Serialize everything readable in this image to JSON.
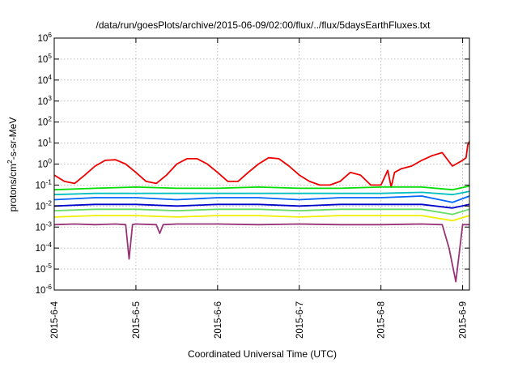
{
  "chart_data": {
    "type": "line",
    "title": "/data/run/goesPlots/archive/2015-06-09/02:00/flux/../flux/5daysEarthFluxes.txt",
    "xlabel": "Coordinated Universal Time (UTC)",
    "ylabel": {
      "prefix": "protons/cm",
      "superscript": "2",
      "suffix": "-s-sr-MeV"
    },
    "yscale": "log",
    "ylim": [
      1e-06,
      1000000.0
    ],
    "xlim": [
      "2015-06-04 00:00",
      "2015-06-09 02:00"
    ],
    "grid": true,
    "x_ticks": [
      "2015-6-4",
      "2015-6-5",
      "2015-6-6",
      "2015-6-7",
      "2015-6-8",
      "2015-6-9"
    ],
    "y_ticks": [
      {
        "value": 1e-06,
        "base": "10",
        "exp": "-6"
      },
      {
        "value": 1e-05,
        "base": "10",
        "exp": "-5"
      },
      {
        "value": 0.0001,
        "base": "10",
        "exp": "-4"
      },
      {
        "value": 0.001,
        "base": "10",
        "exp": "-3"
      },
      {
        "value": 0.01,
        "base": "10",
        "exp": "-2"
      },
      {
        "value": 0.1,
        "base": "10",
        "exp": "-1"
      },
      {
        "value": 1.0,
        "base": "10",
        "exp": "0"
      },
      {
        "value": 10.0,
        "base": "10",
        "exp": "1"
      },
      {
        "value": 100.0,
        "base": "10",
        "exp": "2"
      },
      {
        "value": 1000.0,
        "base": "10",
        "exp": "3"
      },
      {
        "value": 10000.0,
        "base": "10",
        "exp": "4"
      },
      {
        "value": 100000.0,
        "base": "10",
        "exp": "5"
      },
      {
        "value": 1000000.0,
        "base": "10",
        "exp": "6"
      }
    ],
    "series": [
      {
        "color": "#ee0000",
        "x": [
          "2015-06-04 00:00",
          "2015-06-04 03:00",
          "2015-06-04 06:00",
          "2015-06-04 09:00",
          "2015-06-04 12:00",
          "2015-06-04 15:00",
          "2015-06-04 18:00",
          "2015-06-04 21:00",
          "2015-06-05 00:00",
          "2015-06-05 03:00",
          "2015-06-05 06:00",
          "2015-06-05 09:00",
          "2015-06-05 12:00",
          "2015-06-05 15:00",
          "2015-06-05 18:00",
          "2015-06-05 21:00",
          "2015-06-06 00:00",
          "2015-06-06 03:00",
          "2015-06-06 06:00",
          "2015-06-06 09:00",
          "2015-06-06 12:00",
          "2015-06-06 15:00",
          "2015-06-06 18:00",
          "2015-06-06 21:00",
          "2015-06-07 00:00",
          "2015-06-07 03:00",
          "2015-06-07 06:00",
          "2015-06-07 09:00",
          "2015-06-07 12:00",
          "2015-06-07 15:00",
          "2015-06-07 18:00",
          "2015-06-07 21:00",
          "2015-06-08 00:00",
          "2015-06-08 02:00",
          "2015-06-08 03:00",
          "2015-06-08 04:00",
          "2015-06-08 06:00",
          "2015-06-08 09:00",
          "2015-06-08 12:00",
          "2015-06-08 15:00",
          "2015-06-08 18:00",
          "2015-06-08 21:00",
          "2015-06-09 00:00",
          "2015-06-09 01:00",
          "2015-06-09 01:30",
          "2015-06-09 02:00"
        ],
        "y": [
          0.3,
          0.15,
          0.12,
          0.3,
          0.8,
          1.5,
          1.6,
          1.0,
          0.4,
          0.15,
          0.12,
          0.3,
          1.0,
          1.8,
          1.8,
          1.0,
          0.4,
          0.15,
          0.15,
          0.4,
          1.0,
          2.0,
          1.8,
          0.8,
          0.3,
          0.15,
          0.1,
          0.1,
          0.15,
          0.4,
          0.3,
          0.1,
          0.1,
          0.5,
          0.08,
          0.4,
          0.6,
          0.8,
          1.5,
          2.5,
          3.5,
          0.8,
          1.5,
          2.0,
          8.0,
          12.0
        ]
      },
      {
        "color": "#00dd00",
        "x": [
          "2015-06-04 00:00",
          "2015-06-04 12:00",
          "2015-06-05 00:00",
          "2015-06-05 12:00",
          "2015-06-06 00:00",
          "2015-06-06 12:00",
          "2015-06-07 00:00",
          "2015-06-07 12:00",
          "2015-06-08 00:00",
          "2015-06-08 12:00",
          "2015-06-08 21:00",
          "2015-06-09 02:00"
        ],
        "y": [
          0.06,
          0.07,
          0.08,
          0.07,
          0.07,
          0.08,
          0.07,
          0.07,
          0.08,
          0.08,
          0.06,
          0.09
        ]
      },
      {
        "color": "#00c0c0",
        "x": [
          "2015-06-04 00:00",
          "2015-06-04 12:00",
          "2015-06-05 00:00",
          "2015-06-05 12:00",
          "2015-06-06 00:00",
          "2015-06-06 12:00",
          "2015-06-07 00:00",
          "2015-06-07 12:00",
          "2015-06-08 00:00",
          "2015-06-08 12:00",
          "2015-06-08 21:00",
          "2015-06-09 02:00"
        ],
        "y": [
          0.035,
          0.04,
          0.04,
          0.04,
          0.04,
          0.04,
          0.04,
          0.04,
          0.04,
          0.045,
          0.035,
          0.05
        ]
      },
      {
        "color": "#0066ff",
        "x": [
          "2015-06-04 00:00",
          "2015-06-04 12:00",
          "2015-06-05 00:00",
          "2015-06-05 12:00",
          "2015-06-06 00:00",
          "2015-06-06 12:00",
          "2015-06-07 00:00",
          "2015-06-07 12:00",
          "2015-06-08 00:00",
          "2015-06-08 12:00",
          "2015-06-08 21:00",
          "2015-06-09 02:00"
        ],
        "y": [
          0.02,
          0.025,
          0.025,
          0.02,
          0.025,
          0.025,
          0.02,
          0.025,
          0.025,
          0.03,
          0.015,
          0.03
        ]
      },
      {
        "color": "#0000cc",
        "x": [
          "2015-06-04 00:00",
          "2015-06-04 12:00",
          "2015-06-05 00:00",
          "2015-06-05 12:00",
          "2015-06-06 00:00",
          "2015-06-06 12:00",
          "2015-06-07 00:00",
          "2015-06-07 12:00",
          "2015-06-08 00:00",
          "2015-06-08 12:00",
          "2015-06-08 21:00",
          "2015-06-09 02:00"
        ],
        "y": [
          0.01,
          0.012,
          0.012,
          0.01,
          0.012,
          0.012,
          0.01,
          0.012,
          0.012,
          0.012,
          0.008,
          0.012
        ]
      },
      {
        "color": "#66dd66",
        "x": [
          "2015-06-04 00:00",
          "2015-06-04 12:00",
          "2015-06-05 00:00",
          "2015-06-05 12:00",
          "2015-06-06 00:00",
          "2015-06-06 12:00",
          "2015-06-07 00:00",
          "2015-06-07 12:00",
          "2015-06-08 00:00",
          "2015-06-08 12:00",
          "2015-06-08 21:00",
          "2015-06-09 02:00"
        ],
        "y": [
          0.006,
          0.007,
          0.007,
          0.006,
          0.007,
          0.007,
          0.006,
          0.007,
          0.007,
          0.007,
          0.004,
          0.007
        ]
      },
      {
        "color": "#eeee00",
        "x": [
          "2015-06-04 00:00",
          "2015-06-04 12:00",
          "2015-06-05 00:00",
          "2015-06-05 12:00",
          "2015-06-06 00:00",
          "2015-06-06 12:00",
          "2015-06-07 00:00",
          "2015-06-07 12:00",
          "2015-06-08 00:00",
          "2015-06-08 12:00",
          "2015-06-08 21:00",
          "2015-06-09 02:00"
        ],
        "y": [
          0.003,
          0.0035,
          0.0035,
          0.003,
          0.0035,
          0.0035,
          0.003,
          0.0035,
          0.0035,
          0.0035,
          0.002,
          0.0035
        ]
      },
      {
        "color": "#993377",
        "x": [
          "2015-06-04 00:00",
          "2015-06-04 06:00",
          "2015-06-04 12:00",
          "2015-06-04 18:00",
          "2015-06-04 21:00",
          "2015-06-04 22:00",
          "2015-06-04 23:00",
          "2015-06-05 00:00",
          "2015-06-05 06:00",
          "2015-06-05 07:00",
          "2015-06-05 08:00",
          "2015-06-05 12:00",
          "2015-06-06 00:00",
          "2015-06-06 12:00",
          "2015-06-07 00:00",
          "2015-06-07 12:00",
          "2015-06-08 00:00",
          "2015-06-08 12:00",
          "2015-06-08 18:00",
          "2015-06-08 20:00",
          "2015-06-08 22:00",
          "2015-06-09 00:00",
          "2015-06-09 02:00"
        ],
        "y": [
          0.0013,
          0.0014,
          0.0013,
          0.0014,
          0.0013,
          3e-05,
          0.0013,
          0.0014,
          0.0013,
          0.0005,
          0.0013,
          0.0014,
          0.0014,
          0.0013,
          0.0014,
          0.0013,
          0.0013,
          0.0014,
          0.0013,
          0.0001,
          2.5e-06,
          0.0013,
          0.0013
        ]
      }
    ]
  }
}
